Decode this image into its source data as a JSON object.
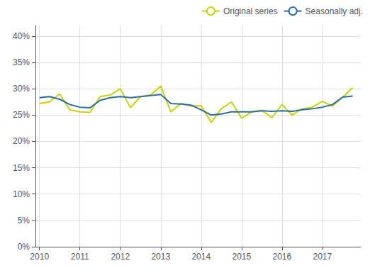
{
  "chart_data": {
    "type": "line",
    "x": [
      2010.0,
      2010.25,
      2010.5,
      2010.75,
      2011.0,
      2011.25,
      2011.5,
      2011.75,
      2012.0,
      2012.25,
      2012.5,
      2012.75,
      2013.0,
      2013.25,
      2013.5,
      2013.75,
      2014.0,
      2014.25,
      2014.5,
      2014.75,
      2015.0,
      2015.25,
      2015.5,
      2015.75,
      2016.0,
      2016.25,
      2016.5,
      2016.75,
      2017.0,
      2017.25,
      2017.5,
      2017.75
    ],
    "series": [
      {
        "name": "Original series",
        "color": "#c8d400",
        "values": [
          0.272,
          0.275,
          0.29,
          0.26,
          0.256,
          0.255,
          0.285,
          0.288,
          0.3,
          0.264,
          0.285,
          0.288,
          0.305,
          0.256,
          0.272,
          0.267,
          0.268,
          0.236,
          0.262,
          0.275,
          0.244,
          0.256,
          0.259,
          0.245,
          0.27,
          0.25,
          0.262,
          0.265,
          0.276,
          0.267,
          0.284,
          0.302
        ]
      },
      {
        "name": "Seasonally adj.",
        "color": "#2e6da4",
        "values": [
          0.283,
          0.285,
          0.28,
          0.27,
          0.265,
          0.264,
          0.278,
          0.283,
          0.285,
          0.283,
          0.285,
          0.287,
          0.289,
          0.272,
          0.271,
          0.269,
          0.26,
          0.25,
          0.252,
          0.256,
          0.256,
          0.256,
          0.258,
          0.257,
          0.258,
          0.257,
          0.26,
          0.262,
          0.265,
          0.27,
          0.284,
          0.286
        ]
      }
    ],
    "xlim": [
      2009.9,
      2017.95
    ],
    "xticks": [
      2010,
      2011,
      2012,
      2013,
      2014,
      2015,
      2016,
      2017
    ],
    "ylim": [
      0.0,
      0.42
    ],
    "yticks": [
      {
        "value": 0.0,
        "label": "0%"
      },
      {
        "value": 0.05,
        "label": "5%"
      },
      {
        "value": 0.1,
        "label": "10%"
      },
      {
        "value": 0.15,
        "label": "15%"
      },
      {
        "value": 0.2,
        "label": "20%"
      },
      {
        "value": 0.25,
        "label": "25%"
      },
      {
        "value": 0.3,
        "label": "30%"
      },
      {
        "value": 0.35,
        "label": "35%"
      },
      {
        "value": 0.4,
        "label": "40%"
      }
    ],
    "grid": true,
    "legend": "upper right"
  }
}
